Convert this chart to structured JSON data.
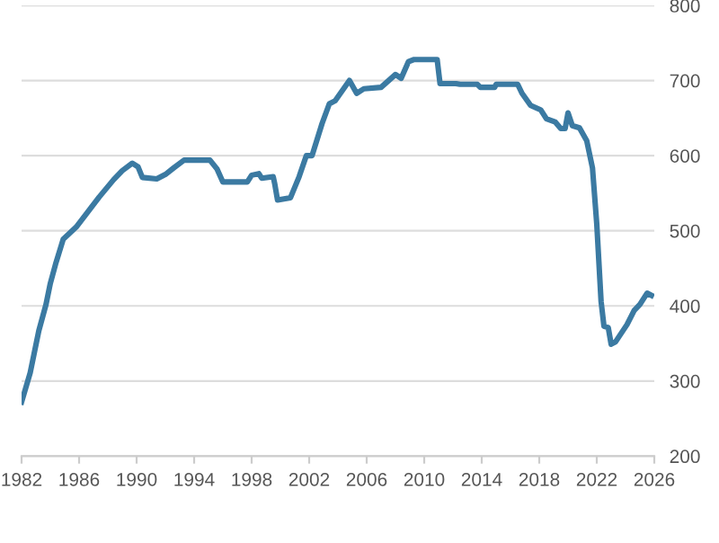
{
  "chart_data": {
    "type": "line",
    "xlim": [
      1982,
      2026
    ],
    "xticks": [
      1982,
      1986,
      1990,
      1994,
      1998,
      2002,
      2006,
      2010,
      2014,
      2018,
      2022,
      2026
    ],
    "ylim": [
      200,
      800
    ],
    "yticks": [
      200,
      300,
      400,
      500,
      600,
      700,
      800
    ],
    "grid": "y",
    "marker": "none",
    "line_style": "solid",
    "series": [
      {
        "color": "#3b7aa2",
        "x": [
          1982.0,
          1982.6,
          1983.2,
          1983.7,
          1984.0,
          1984.4,
          1984.9,
          1985.8,
          1986.6,
          1987.4,
          1988.4,
          1989.0,
          1989.7,
          1990.1,
          1990.4,
          1991.4,
          1992.0,
          1992.6,
          1993.3,
          1995.1,
          1995.6,
          1996.0,
          1997.7,
          1998.0,
          1998.5,
          1998.7,
          1999.5,
          1999.6,
          1999.8,
          2000.7,
          2001.3,
          2001.8,
          2002.2,
          2002.9,
          2003.4,
          2003.8,
          2004.8,
          2005.3,
          2005.8,
          2007.0,
          2008.0,
          2008.4,
          2008.9,
          2009.3,
          2010.9,
          2011.1,
          2012.2,
          2012.5,
          2013.7,
          2013.9,
          2014.9,
          2015.0,
          2016.5,
          2016.8,
          2017.4,
          2018.1,
          2018.5,
          2019.1,
          2019.5,
          2019.8,
          2020.0,
          2020.3,
          2020.8,
          2021.3,
          2021.7,
          2022.0,
          2022.3,
          2022.5,
          2022.8,
          2023.0,
          2023.3,
          2024.1,
          2024.6,
          2025.0,
          2025.5,
          2025.8
        ],
        "values": [
          272,
          311,
          367,
          402,
          430,
          458,
          489,
          505,
          525,
          545,
          568,
          580,
          590,
          585,
          571,
          569,
          575,
          584,
          594,
          594,
          582,
          565,
          565,
          574,
          576,
          570,
          572,
          563,
          541,
          544,
          572,
          600,
          600,
          643,
          669,
          673,
          700,
          683,
          689,
          691,
          708,
          703,
          725,
          728,
          728,
          696,
          696,
          695,
          695,
          691,
          691,
          695,
          695,
          683,
          667,
          661,
          649,
          645,
          636,
          636,
          657,
          640,
          637,
          620,
          584,
          509,
          406,
          373,
          371,
          349,
          352,
          375,
          394,
          402,
          417,
          414
        ]
      }
    ]
  }
}
